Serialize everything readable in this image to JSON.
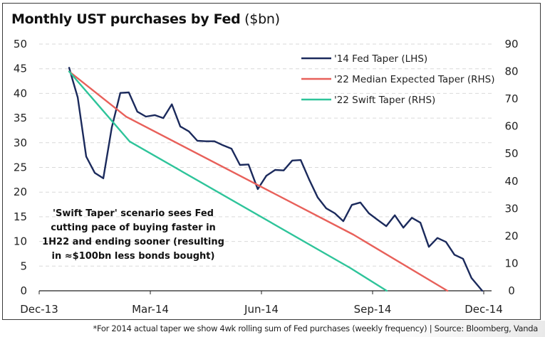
{
  "title": {
    "bold": "Monthly UST purchases by Fed",
    "unit": "($bn)"
  },
  "footnote": "*For 2014 actual taper we show 4wk rolling sum of Fed purchases (weekly frequency) | Source: Bloomberg, Vanda",
  "chart_data": {
    "type": "line",
    "title": "Monthly UST purchases by Fed ($bn)",
    "xlabel": "",
    "ylabel": "",
    "x_unit": "months since Dec-13",
    "x_ticks": [
      {
        "label": "Dec-13",
        "x": 0
      },
      {
        "label": "Mar-14",
        "x": 3
      },
      {
        "label": "Jun-14",
        "x": 6
      },
      {
        "label": "Sep-14",
        "x": 9
      },
      {
        "label": "Dec-14",
        "x": 12
      }
    ],
    "xlim": [
      0,
      12.4
    ],
    "y_left": {
      "ylim": [
        0,
        50
      ],
      "ticks": [
        0,
        5,
        10,
        15,
        20,
        25,
        30,
        35,
        40,
        45,
        50
      ]
    },
    "y_right": {
      "ylim": [
        0,
        90
      ],
      "ticks": [
        0,
        10,
        20,
        30,
        40,
        50,
        60,
        70,
        80,
        90
      ]
    },
    "grid": "horizontal dashed",
    "legend_position": "top-right",
    "series": [
      {
        "name": "'14 Fed Taper (LHS)",
        "axis": "left",
        "color": "#1b2a5c",
        "x": [
          0.81,
          0.9,
          1.04,
          1.27,
          1.5,
          1.73,
          1.96,
          2.19,
          2.42,
          2.65,
          2.88,
          3.12,
          3.35,
          3.58,
          3.81,
          4.04,
          4.27,
          4.5,
          4.73,
          4.96,
          5.19,
          5.42,
          5.65,
          5.9,
          6.13,
          6.37,
          6.6,
          6.83,
          7.06,
          7.29,
          7.52,
          7.75,
          7.98,
          8.21,
          8.44,
          8.67,
          8.9,
          9.13,
          9.37,
          9.6,
          9.83,
          10.06,
          10.29,
          10.52,
          10.75,
          10.98,
          11.21,
          11.44,
          11.67,
          11.96
        ],
        "y": [
          45.2,
          42.8,
          39.2,
          27.2,
          23.9,
          22.8,
          33.1,
          40.1,
          40.2,
          36.3,
          35.3,
          35.6,
          35.0,
          37.8,
          33.3,
          32.3,
          30.4,
          30.3,
          30.3,
          29.5,
          28.8,
          25.5,
          25.6,
          20.6,
          23.3,
          24.5,
          24.4,
          26.4,
          26.5,
          22.5,
          18.9,
          16.7,
          15.7,
          14.1,
          17.4,
          17.9,
          15.7,
          14.4,
          13.1,
          15.3,
          12.8,
          14.8,
          13.8,
          8.9,
          10.7,
          9.9,
          7.3,
          6.5,
          2.6,
          0
        ]
      },
      {
        "name": "'22 Median Expected Taper (RHS)",
        "axis": "right",
        "color": "#e8605a",
        "x": [
          0.81,
          2.35,
          8.48,
          11.02
        ],
        "y": [
          80,
          63.5,
          20.5,
          0
        ]
      },
      {
        "name": "'22 Swift Taper (RHS)",
        "axis": "right",
        "color": "#2ec49a",
        "x": [
          0.81,
          2.44,
          8.4,
          9.38
        ],
        "y": [
          80,
          54.5,
          8.3,
          0
        ]
      }
    ],
    "annotation": [
      "'Swift Taper' scenario sees Fed",
      "cutting pace of buying faster in",
      "1H22 and ending sooner (resulting",
      "in ≈$100bn less bonds bought)"
    ]
  }
}
